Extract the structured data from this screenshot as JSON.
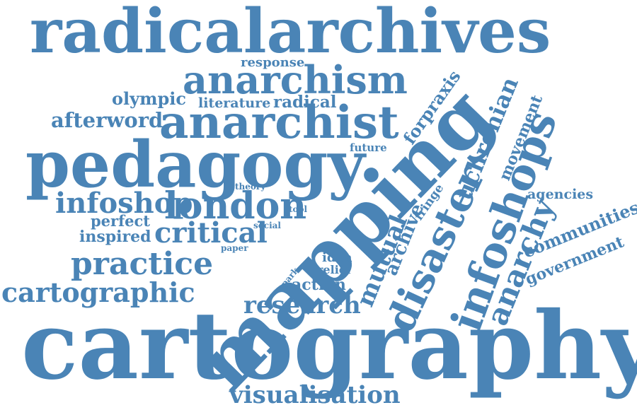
{
  "word_color": "#4a84b6",
  "background": "#ffffff",
  "words": {
    "radicalarchives": "radicalarchives",
    "response": "response",
    "anarchism": "anarchism",
    "olympic": "olympic",
    "literature": "literature",
    "radical": "radical",
    "forpraxis": "forpraxis",
    "afterword": "afterword",
    "anarchist": "anarchist",
    "uchronian": "uchronian",
    "movement": "movement",
    "pedagogy": "pedagogy",
    "future": "future",
    "infoshops": "infoshops",
    "theory": "theory",
    "agencies": "agencies",
    "infoshop": "infoshop",
    "london": "london",
    "tool": "tool",
    "fringe": "fringe",
    "communities": "communities",
    "perfect": "perfect",
    "social": "social",
    "critical": "critical",
    "inspired": "inspired",
    "mutual": "mutual",
    "archive": "archive",
    "disaster": "disaster",
    "government": "government",
    "paper": "paper",
    "mapping": "mapping",
    "anarchy": "anarchy",
    "practice": "practice",
    "idea": "idea",
    "park": "park",
    "relief": "relief",
    "cartographic": "cartographic",
    "action": "action",
    "research": "research",
    "cartography": "cartography",
    "visualisation": "visualisation"
  }
}
